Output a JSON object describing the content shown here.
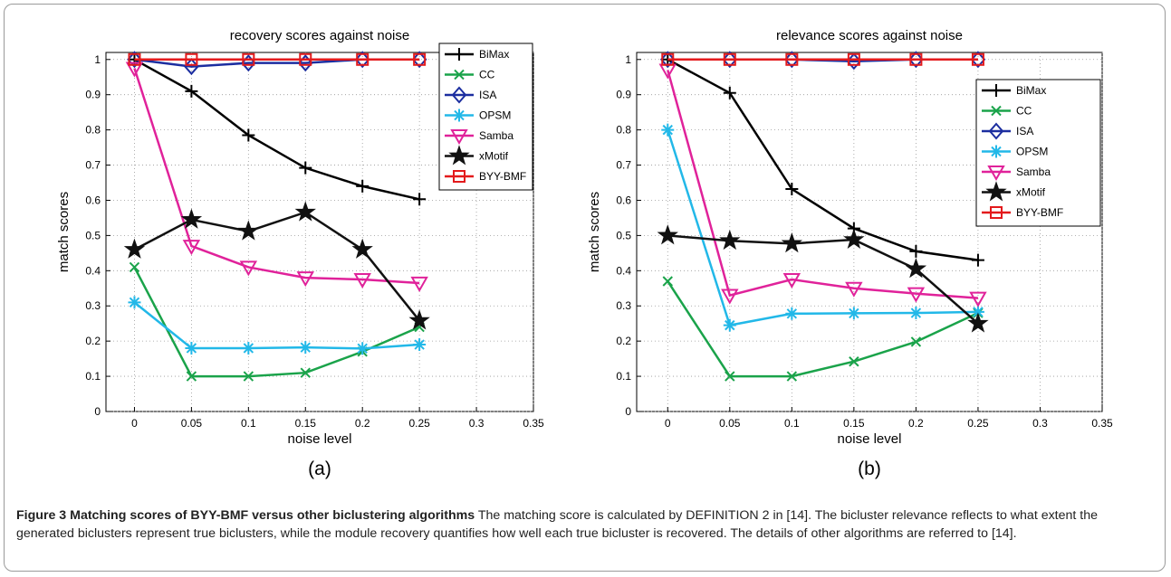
{
  "panels": [
    {
      "label": "(a)"
    },
    {
      "label": "(b)"
    }
  ],
  "caption": {
    "title": "Figure 3 Matching scores of BYY-BMF versus other biclustering algorithms",
    "body": "The matching score is calculated by DEFINITION 2 in [14]. The bicluster relevance reflects to what extent the generated biclusters represent true biclusters, while the module recovery quantifies how well each true bicluster is recovered. The details of other algorithms are referred to [14]."
  },
  "colors": {
    "BiMax": "#000000",
    "CC": "#1aa34a",
    "ISA": "#1c2ea0",
    "OPSM": "#22b8e8",
    "Samba": "#e0229a",
    "xMotif": "#111111",
    "BYY-BMF": "#e31a1c"
  },
  "chart_data": [
    {
      "type": "line",
      "title": "recovery scores against noise",
      "xlabel": "noise level",
      "ylabel": "match scores",
      "xlim": [
        -0.025,
        0.35
      ],
      "ylim": [
        0,
        1.02
      ],
      "xticks": [
        "0",
        "0.05",
        "0.1",
        "0.15",
        "0.2",
        "0.25",
        "0.3",
        "0.35"
      ],
      "yticks": [
        "0",
        "0.1",
        "0.2",
        "0.3",
        "0.4",
        "0.5",
        "0.6",
        "0.7",
        "0.8",
        "0.9",
        "1"
      ],
      "grid": true,
      "legend": "top-right",
      "x": [
        0,
        0.05,
        0.1,
        0.15,
        0.2,
        0.25
      ],
      "series": [
        {
          "name": "BiMax",
          "marker": "plus",
          "values": [
            1.0,
            0.91,
            0.785,
            0.692,
            0.64,
            0.603
          ]
        },
        {
          "name": "CC",
          "marker": "x",
          "values": [
            0.41,
            0.1,
            0.1,
            0.11,
            0.17,
            0.24
          ]
        },
        {
          "name": "ISA",
          "marker": "diamond",
          "values": [
            1.0,
            0.98,
            0.99,
            0.99,
            1.0,
            1.0
          ]
        },
        {
          "name": "OPSM",
          "marker": "asterisk",
          "values": [
            0.31,
            0.18,
            0.18,
            0.182,
            0.179,
            0.19
          ]
        },
        {
          "name": "Samba",
          "marker": "triangle-down",
          "values": [
            0.975,
            0.47,
            0.41,
            0.38,
            0.375,
            0.365
          ]
        },
        {
          "name": "xMotif",
          "marker": "star",
          "values": [
            0.46,
            0.545,
            0.512,
            0.566,
            0.46,
            0.258
          ]
        },
        {
          "name": "BYY-BMF",
          "marker": "square",
          "values": [
            1.0,
            1.0,
            1.0,
            1.0,
            1.0,
            1.0
          ]
        }
      ]
    },
    {
      "type": "line",
      "title": "relevance scores against noise",
      "xlabel": "noise level",
      "ylabel": "match scores",
      "xlim": [
        -0.025,
        0.35
      ],
      "ylim": [
        0,
        1.02
      ],
      "xticks": [
        "0",
        "0.05",
        "0.1",
        "0.15",
        "0.2",
        "0.25",
        "0.3",
        "0.35"
      ],
      "yticks": [
        "0",
        "0.1",
        "0.2",
        "0.3",
        "0.4",
        "0.5",
        "0.6",
        "0.7",
        "0.8",
        "0.9",
        "1"
      ],
      "grid": true,
      "legend": "top-right",
      "x": [
        0,
        0.05,
        0.1,
        0.15,
        0.2,
        0.25
      ],
      "series": [
        {
          "name": "BiMax",
          "marker": "plus",
          "values": [
            1.0,
            0.905,
            0.632,
            0.52,
            0.455,
            0.43
          ]
        },
        {
          "name": "CC",
          "marker": "x",
          "values": [
            0.37,
            0.1,
            0.1,
            0.142,
            0.198,
            0.28
          ]
        },
        {
          "name": "ISA",
          "marker": "diamond",
          "values": [
            1.0,
            1.0,
            1.0,
            0.995,
            1.0,
            1.0
          ]
        },
        {
          "name": "OPSM",
          "marker": "asterisk",
          "values": [
            0.8,
            0.245,
            0.278,
            0.279,
            0.28,
            0.283
          ]
        },
        {
          "name": "Samba",
          "marker": "triangle-down",
          "values": [
            0.97,
            0.33,
            0.375,
            0.35,
            0.335,
            0.322
          ]
        },
        {
          "name": "xMotif",
          "marker": "star",
          "values": [
            0.5,
            0.485,
            0.477,
            0.488,
            0.405,
            0.25
          ]
        },
        {
          "name": "BYY-BMF",
          "marker": "square",
          "values": [
            1.0,
            1.0,
            1.0,
            1.0,
            1.0,
            1.0
          ]
        }
      ]
    }
  ]
}
